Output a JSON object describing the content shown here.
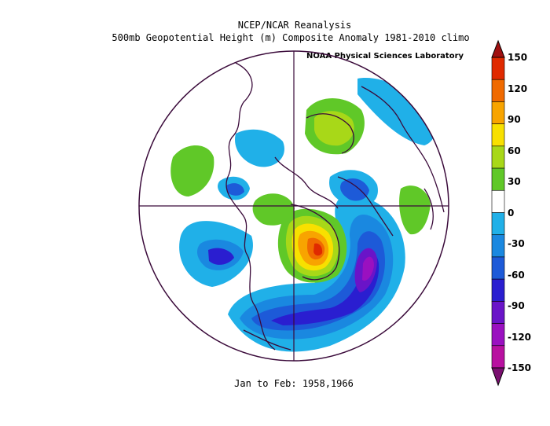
{
  "title_line1": "NCEP/NCAR Reanalysis",
  "title_line2": "500mb Geopotential Height (m) Composite Anomaly 1981-2010 climo",
  "credit": "NOAA Physical Sciences Laboratory",
  "caption": "Jan to Feb: 1958,1966",
  "colorbar": {
    "levels": [
      "150",
      "120",
      "90",
      "60",
      "30",
      "0",
      "-30",
      "-60",
      "-90",
      "-120",
      "-150"
    ],
    "colors": [
      "#a01010",
      "#e02a00",
      "#f06a00",
      "#f8a400",
      "#f8e000",
      "#a8d818",
      "#60c828",
      "#ffffff",
      "#20b0e8",
      "#1a88e0",
      "#1d5ad8",
      "#2a1ed0",
      "#6a14c8",
      "#9a10c0",
      "#b810a0",
      "#7a1070"
    ]
  },
  "map": {
    "projection": "north-polar-stereographic",
    "field": "500mb geopotential height anomaly (m)"
  }
}
